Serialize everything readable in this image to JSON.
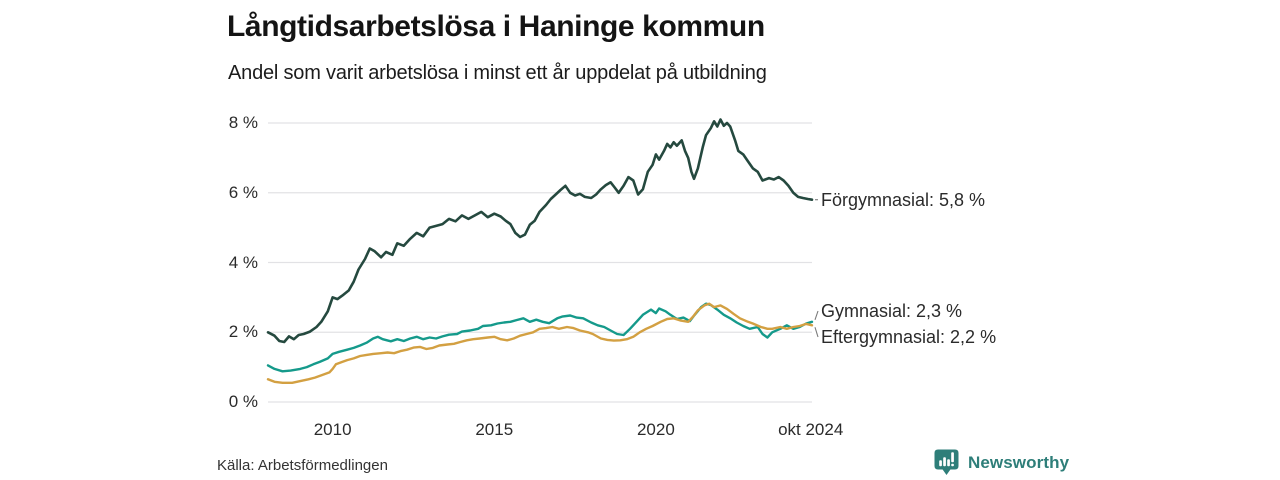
{
  "header": {
    "title": "Långtidsarbetslösa i Haninge kommun",
    "subtitle": "Andel som varit arbetslösa i minst ett år uppdelat på utbildning"
  },
  "chart_data": {
    "type": "line",
    "title": "Långtidsarbetslösa i Haninge kommun",
    "subtitle": "Andel som varit arbetslösa i minst ett år uppdelat på utbildning",
    "grid": true,
    "grid_color": "#e2e2e5",
    "connector_color": "#7a7a7a",
    "legend_position": "inline-right",
    "x_axis": {
      "min": 2008.0,
      "max": 2024.83,
      "ticks": [
        {
          "value": 2010,
          "label": "2010"
        },
        {
          "value": 2015,
          "label": "2015"
        },
        {
          "value": 2020,
          "label": "2020"
        },
        {
          "value": 2024.79,
          "label": "okt 2024"
        }
      ]
    },
    "y_axis": {
      "min": 0,
      "max": 8,
      "unit": "%",
      "ticks": [
        {
          "value": 8,
          "label": "8 %"
        },
        {
          "value": 6,
          "label": "6 %"
        },
        {
          "value": 4,
          "label": "4 %"
        },
        {
          "value": 2,
          "label": "2 %"
        },
        {
          "value": 0,
          "label": "0 %"
        }
      ]
    },
    "series": [
      {
        "name": "Förgymnasial",
        "label": "Förgymnasial: 5,8 %",
        "end_value": 5.8,
        "color": "#25493f",
        "points": [
          [
            2008.0,
            2.0
          ],
          [
            2008.2,
            1.9
          ],
          [
            2008.35,
            1.75
          ],
          [
            2008.5,
            1.72
          ],
          [
            2008.65,
            1.88
          ],
          [
            2008.8,
            1.8
          ],
          [
            2008.95,
            1.92
          ],
          [
            2009.1,
            1.95
          ],
          [
            2009.3,
            2.02
          ],
          [
            2009.5,
            2.15
          ],
          [
            2009.65,
            2.3
          ],
          [
            2009.85,
            2.6
          ],
          [
            2010.0,
            3.0
          ],
          [
            2010.15,
            2.95
          ],
          [
            2010.3,
            3.05
          ],
          [
            2010.5,
            3.2
          ],
          [
            2010.65,
            3.45
          ],
          [
            2010.8,
            3.8
          ],
          [
            2011.0,
            4.1
          ],
          [
            2011.15,
            4.4
          ],
          [
            2011.3,
            4.32
          ],
          [
            2011.5,
            4.15
          ],
          [
            2011.65,
            4.3
          ],
          [
            2011.85,
            4.22
          ],
          [
            2012.0,
            4.55
          ],
          [
            2012.2,
            4.48
          ],
          [
            2012.4,
            4.68
          ],
          [
            2012.6,
            4.85
          ],
          [
            2012.8,
            4.75
          ],
          [
            2013.0,
            5.0
          ],
          [
            2013.2,
            5.05
          ],
          [
            2013.4,
            5.1
          ],
          [
            2013.6,
            5.25
          ],
          [
            2013.8,
            5.18
          ],
          [
            2014.0,
            5.35
          ],
          [
            2014.2,
            5.25
          ],
          [
            2014.4,
            5.35
          ],
          [
            2014.6,
            5.45
          ],
          [
            2014.8,
            5.3
          ],
          [
            2015.0,
            5.4
          ],
          [
            2015.2,
            5.32
          ],
          [
            2015.35,
            5.2
          ],
          [
            2015.5,
            5.1
          ],
          [
            2015.65,
            4.85
          ],
          [
            2015.8,
            4.73
          ],
          [
            2015.95,
            4.8
          ],
          [
            2016.1,
            5.08
          ],
          [
            2016.25,
            5.2
          ],
          [
            2016.4,
            5.45
          ],
          [
            2016.6,
            5.65
          ],
          [
            2016.75,
            5.82
          ],
          [
            2016.9,
            5.95
          ],
          [
            2017.05,
            6.08
          ],
          [
            2017.2,
            6.2
          ],
          [
            2017.35,
            6.0
          ],
          [
            2017.5,
            5.92
          ],
          [
            2017.65,
            5.97
          ],
          [
            2017.8,
            5.88
          ],
          [
            2018.0,
            5.85
          ],
          [
            2018.15,
            5.95
          ],
          [
            2018.3,
            6.1
          ],
          [
            2018.45,
            6.22
          ],
          [
            2018.6,
            6.3
          ],
          [
            2018.7,
            6.18
          ],
          [
            2018.85,
            6.0
          ],
          [
            2019.0,
            6.2
          ],
          [
            2019.15,
            6.45
          ],
          [
            2019.3,
            6.35
          ],
          [
            2019.45,
            5.95
          ],
          [
            2019.6,
            6.1
          ],
          [
            2019.75,
            6.6
          ],
          [
            2019.9,
            6.8
          ],
          [
            2020.0,
            7.1
          ],
          [
            2020.1,
            6.95
          ],
          [
            2020.25,
            7.2
          ],
          [
            2020.35,
            7.4
          ],
          [
            2020.45,
            7.3
          ],
          [
            2020.55,
            7.45
          ],
          [
            2020.65,
            7.35
          ],
          [
            2020.8,
            7.5
          ],
          [
            2020.9,
            7.2
          ],
          [
            2021.0,
            7.0
          ],
          [
            2021.1,
            6.6
          ],
          [
            2021.18,
            6.4
          ],
          [
            2021.3,
            6.7
          ],
          [
            2021.45,
            7.3
          ],
          [
            2021.55,
            7.65
          ],
          [
            2021.7,
            7.85
          ],
          [
            2021.8,
            8.05
          ],
          [
            2021.9,
            7.9
          ],
          [
            2022.0,
            8.1
          ],
          [
            2022.1,
            7.92
          ],
          [
            2022.2,
            8.0
          ],
          [
            2022.3,
            7.9
          ],
          [
            2022.45,
            7.5
          ],
          [
            2022.55,
            7.2
          ],
          [
            2022.7,
            7.1
          ],
          [
            2022.85,
            6.9
          ],
          [
            2023.0,
            6.7
          ],
          [
            2023.15,
            6.6
          ],
          [
            2023.3,
            6.35
          ],
          [
            2023.5,
            6.42
          ],
          [
            2023.65,
            6.38
          ],
          [
            2023.8,
            6.45
          ],
          [
            2023.95,
            6.35
          ],
          [
            2024.1,
            6.2
          ],
          [
            2024.25,
            6.0
          ],
          [
            2024.4,
            5.88
          ],
          [
            2024.55,
            5.85
          ],
          [
            2024.7,
            5.82
          ],
          [
            2024.83,
            5.8
          ]
        ]
      },
      {
        "name": "Gymnasial",
        "label": "Gymnasial: 2,3 %",
        "end_value": 2.3,
        "color": "#159a8b",
        "points": [
          [
            2008.0,
            1.05
          ],
          [
            2008.2,
            0.95
          ],
          [
            2008.45,
            0.88
          ],
          [
            2008.7,
            0.9
          ],
          [
            2009.0,
            0.95
          ],
          [
            2009.2,
            1.0
          ],
          [
            2009.4,
            1.08
          ],
          [
            2009.6,
            1.15
          ],
          [
            2009.85,
            1.25
          ],
          [
            2010.0,
            1.38
          ],
          [
            2010.2,
            1.44
          ],
          [
            2010.45,
            1.5
          ],
          [
            2010.65,
            1.55
          ],
          [
            2010.85,
            1.62
          ],
          [
            2011.05,
            1.7
          ],
          [
            2011.25,
            1.82
          ],
          [
            2011.4,
            1.87
          ],
          [
            2011.55,
            1.8
          ],
          [
            2011.8,
            1.74
          ],
          [
            2012.0,
            1.8
          ],
          [
            2012.2,
            1.75
          ],
          [
            2012.4,
            1.82
          ],
          [
            2012.6,
            1.87
          ],
          [
            2012.8,
            1.8
          ],
          [
            2013.0,
            1.85
          ],
          [
            2013.2,
            1.82
          ],
          [
            2013.4,
            1.88
          ],
          [
            2013.6,
            1.93
          ],
          [
            2013.85,
            1.95
          ],
          [
            2014.0,
            2.02
          ],
          [
            2014.25,
            2.05
          ],
          [
            2014.5,
            2.1
          ],
          [
            2014.65,
            2.18
          ],
          [
            2014.9,
            2.2
          ],
          [
            2015.1,
            2.25
          ],
          [
            2015.3,
            2.28
          ],
          [
            2015.5,
            2.3
          ],
          [
            2015.7,
            2.35
          ],
          [
            2015.9,
            2.4
          ],
          [
            2016.1,
            2.3
          ],
          [
            2016.3,
            2.36
          ],
          [
            2016.5,
            2.3
          ],
          [
            2016.7,
            2.26
          ],
          [
            2016.95,
            2.4
          ],
          [
            2017.1,
            2.45
          ],
          [
            2017.35,
            2.48
          ],
          [
            2017.55,
            2.42
          ],
          [
            2017.75,
            2.4
          ],
          [
            2018.0,
            2.28
          ],
          [
            2018.2,
            2.2
          ],
          [
            2018.4,
            2.15
          ],
          [
            2018.6,
            2.05
          ],
          [
            2018.8,
            1.95
          ],
          [
            2019.0,
            1.92
          ],
          [
            2019.2,
            2.1
          ],
          [
            2019.4,
            2.3
          ],
          [
            2019.6,
            2.5
          ],
          [
            2019.85,
            2.65
          ],
          [
            2020.0,
            2.55
          ],
          [
            2020.1,
            2.68
          ],
          [
            2020.3,
            2.6
          ],
          [
            2020.45,
            2.5
          ],
          [
            2020.65,
            2.38
          ],
          [
            2020.85,
            2.42
          ],
          [
            2021.05,
            2.32
          ],
          [
            2021.2,
            2.5
          ],
          [
            2021.4,
            2.72
          ],
          [
            2021.55,
            2.82
          ],
          [
            2021.7,
            2.78
          ],
          [
            2021.9,
            2.65
          ],
          [
            2022.1,
            2.5
          ],
          [
            2022.3,
            2.4
          ],
          [
            2022.5,
            2.28
          ],
          [
            2022.7,
            2.18
          ],
          [
            2022.9,
            2.1
          ],
          [
            2023.15,
            2.15
          ],
          [
            2023.3,
            1.95
          ],
          [
            2023.45,
            1.85
          ],
          [
            2023.6,
            2.0
          ],
          [
            2023.85,
            2.1
          ],
          [
            2024.05,
            2.2
          ],
          [
            2024.25,
            2.1
          ],
          [
            2024.45,
            2.15
          ],
          [
            2024.65,
            2.25
          ],
          [
            2024.83,
            2.3
          ]
        ]
      },
      {
        "name": "Eftergymnasial",
        "label": "Eftergymnasial: 2,2 %",
        "end_value": 2.2,
        "color": "#d3a042",
        "points": [
          [
            2008.0,
            0.65
          ],
          [
            2008.2,
            0.58
          ],
          [
            2008.45,
            0.55
          ],
          [
            2008.75,
            0.55
          ],
          [
            2009.0,
            0.6
          ],
          [
            2009.25,
            0.65
          ],
          [
            2009.45,
            0.7
          ],
          [
            2009.7,
            0.78
          ],
          [
            2009.9,
            0.85
          ],
          [
            2010.0,
            0.95
          ],
          [
            2010.1,
            1.08
          ],
          [
            2010.3,
            1.15
          ],
          [
            2010.45,
            1.2
          ],
          [
            2010.65,
            1.25
          ],
          [
            2010.85,
            1.32
          ],
          [
            2011.05,
            1.35
          ],
          [
            2011.25,
            1.38
          ],
          [
            2011.5,
            1.4
          ],
          [
            2011.7,
            1.42
          ],
          [
            2011.9,
            1.4
          ],
          [
            2012.1,
            1.46
          ],
          [
            2012.3,
            1.5
          ],
          [
            2012.5,
            1.56
          ],
          [
            2012.7,
            1.58
          ],
          [
            2012.9,
            1.52
          ],
          [
            2013.1,
            1.55
          ],
          [
            2013.3,
            1.62
          ],
          [
            2013.55,
            1.65
          ],
          [
            2013.75,
            1.67
          ],
          [
            2013.95,
            1.72
          ],
          [
            2014.15,
            1.77
          ],
          [
            2014.35,
            1.8
          ],
          [
            2014.55,
            1.82
          ],
          [
            2014.8,
            1.85
          ],
          [
            2015.0,
            1.87
          ],
          [
            2015.2,
            1.8
          ],
          [
            2015.4,
            1.77
          ],
          [
            2015.6,
            1.82
          ],
          [
            2015.8,
            1.9
          ],
          [
            2016.0,
            1.95
          ],
          [
            2016.2,
            2.0
          ],
          [
            2016.4,
            2.1
          ],
          [
            2016.6,
            2.12
          ],
          [
            2016.8,
            2.15
          ],
          [
            2017.0,
            2.1
          ],
          [
            2017.25,
            2.15
          ],
          [
            2017.45,
            2.12
          ],
          [
            2017.65,
            2.05
          ],
          [
            2017.9,
            2.0
          ],
          [
            2018.05,
            1.95
          ],
          [
            2018.3,
            1.82
          ],
          [
            2018.5,
            1.78
          ],
          [
            2018.7,
            1.76
          ],
          [
            2018.9,
            1.77
          ],
          [
            2019.1,
            1.8
          ],
          [
            2019.3,
            1.87
          ],
          [
            2019.5,
            2.0
          ],
          [
            2019.7,
            2.1
          ],
          [
            2019.9,
            2.18
          ],
          [
            2020.15,
            2.3
          ],
          [
            2020.35,
            2.38
          ],
          [
            2020.55,
            2.4
          ],
          [
            2020.75,
            2.34
          ],
          [
            2021.0,
            2.3
          ],
          [
            2021.15,
            2.45
          ],
          [
            2021.3,
            2.63
          ],
          [
            2021.5,
            2.77
          ],
          [
            2021.65,
            2.82
          ],
          [
            2021.8,
            2.72
          ],
          [
            2022.0,
            2.77
          ],
          [
            2022.2,
            2.67
          ],
          [
            2022.4,
            2.53
          ],
          [
            2022.6,
            2.4
          ],
          [
            2022.85,
            2.3
          ],
          [
            2023.0,
            2.25
          ],
          [
            2023.25,
            2.15
          ],
          [
            2023.45,
            2.1
          ],
          [
            2023.6,
            2.1
          ],
          [
            2023.85,
            2.15
          ],
          [
            2024.05,
            2.1
          ],
          [
            2024.25,
            2.15
          ],
          [
            2024.45,
            2.18
          ],
          [
            2024.65,
            2.24
          ],
          [
            2024.83,
            2.2
          ]
        ]
      }
    ]
  },
  "footer": {
    "source": "Källa: Arbetsförmedlingen",
    "brand": "Newsworthy",
    "brand_color": "#2e7e79"
  }
}
